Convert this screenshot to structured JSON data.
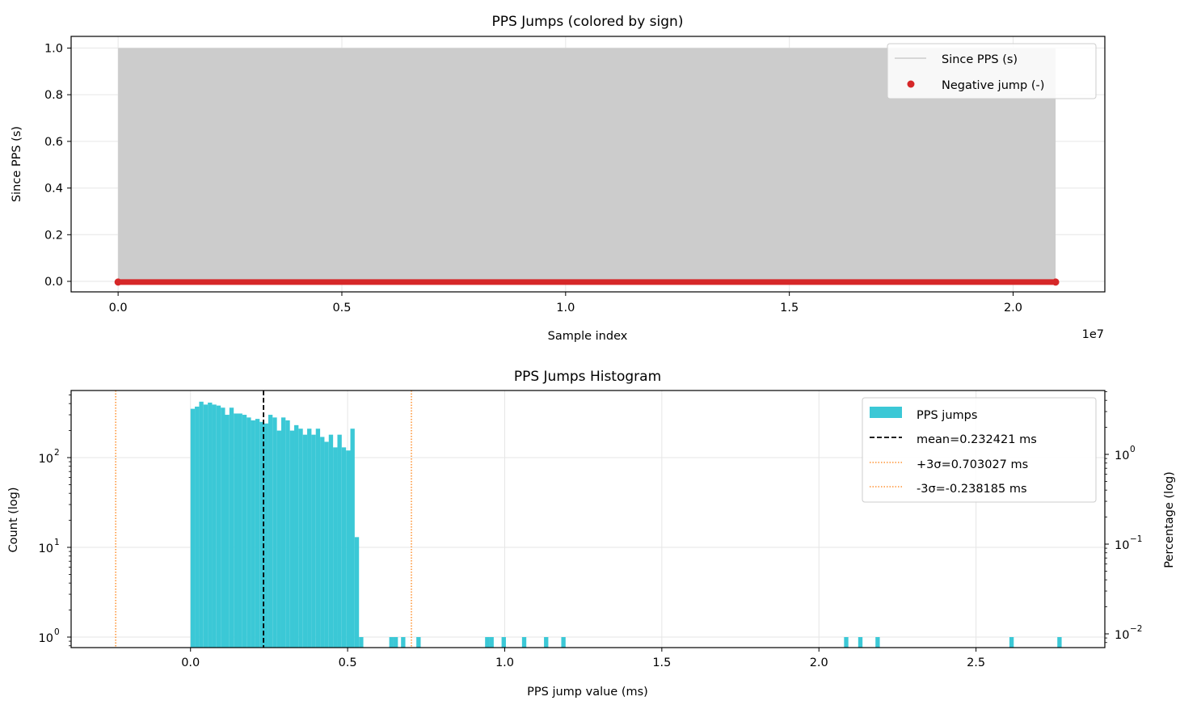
{
  "colors": {
    "since_pps": "#cccccc",
    "negative": "#d62728",
    "histogram": "#3bc8d6",
    "mean_line": "#000000",
    "sigma_line": "#ff7f0e",
    "grid": "#e6e6e6"
  },
  "chart_data": [
    {
      "type": "area",
      "title": "PPS Jumps (colored by sign)",
      "xlabel": "Sample index",
      "ylabel": "Since PPS (s)",
      "x_offset_label": "1e7",
      "xlim": [
        -1.05,
        22.05
      ],
      "ylim": [
        -0.045,
        1.05
      ],
      "x_ticks": [
        0.0,
        0.5,
        1.0,
        1.5,
        2.0
      ],
      "x_tick_labels": [
        "0.0",
        "0.5",
        "1.0",
        "1.5",
        "2.0"
      ],
      "y_ticks": [
        0.0,
        0.2,
        0.4,
        0.6,
        0.8,
        1.0
      ],
      "y_tick_labels": [
        "0.0",
        "0.2",
        "0.4",
        "0.6",
        "0.8",
        "1.0"
      ],
      "grid": true,
      "legend_position": "top-right",
      "series": [
        {
          "name": "Since PPS (s)",
          "kind": "band",
          "x_range": [
            0.0,
            2.095
          ],
          "y_range": [
            0.0,
            1.0
          ]
        },
        {
          "name": "Negative jump (-)",
          "kind": "points",
          "x_range": [
            0.0,
            2.095
          ],
          "y": -0.003
        }
      ]
    },
    {
      "type": "bar",
      "title": "PPS Jumps Histogram",
      "xlabel": "PPS jump value (ms)",
      "ylabel": "Count (log)",
      "y2label": "Percentage (log)",
      "y_scale": "log",
      "xlim": [
        -0.38,
        2.91
      ],
      "x_ticks": [
        0.0,
        0.5,
        1.0,
        1.5,
        2.0,
        2.5
      ],
      "x_tick_labels": [
        "0.0",
        "0.5",
        "1.0",
        "1.5",
        "2.0",
        "2.5"
      ],
      "y_ticks": [
        1,
        10,
        100
      ],
      "y_tick_labels": [
        {
          "base": "10",
          "exp": "0"
        },
        {
          "base": "10",
          "exp": "1"
        },
        {
          "base": "10",
          "exp": "2"
        }
      ],
      "y2_ticks": [
        {
          "base": "10",
          "exp": "−2"
        },
        {
          "base": "10",
          "exp": "−1"
        },
        {
          "base": "10",
          "exp": "0"
        }
      ],
      "grid": true,
      "legend_position": "top-right",
      "bin_width": 0.01375,
      "bins": [
        {
          "x": 0.0,
          "count": 350
        },
        {
          "x": 0.01375,
          "count": 370
        },
        {
          "x": 0.0275,
          "count": 420
        },
        {
          "x": 0.04125,
          "count": 390
        },
        {
          "x": 0.055,
          "count": 410
        },
        {
          "x": 0.06875,
          "count": 390
        },
        {
          "x": 0.0825,
          "count": 380
        },
        {
          "x": 0.09625,
          "count": 360
        },
        {
          "x": 0.11,
          "count": 300
        },
        {
          "x": 0.12375,
          "count": 360
        },
        {
          "x": 0.1375,
          "count": 310
        },
        {
          "x": 0.15125,
          "count": 310
        },
        {
          "x": 0.165,
          "count": 300
        },
        {
          "x": 0.17875,
          "count": 280
        },
        {
          "x": 0.1925,
          "count": 260
        },
        {
          "x": 0.20625,
          "count": 270
        },
        {
          "x": 0.22,
          "count": 250
        },
        {
          "x": 0.23375,
          "count": 240
        },
        {
          "x": 0.2475,
          "count": 300
        },
        {
          "x": 0.26125,
          "count": 280
        },
        {
          "x": 0.275,
          "count": 200
        },
        {
          "x": 0.28875,
          "count": 280
        },
        {
          "x": 0.3025,
          "count": 260
        },
        {
          "x": 0.31625,
          "count": 200
        },
        {
          "x": 0.33,
          "count": 230
        },
        {
          "x": 0.34375,
          "count": 210
        },
        {
          "x": 0.3575,
          "count": 180
        },
        {
          "x": 0.37125,
          "count": 210
        },
        {
          "x": 0.385,
          "count": 180
        },
        {
          "x": 0.39875,
          "count": 210
        },
        {
          "x": 0.4125,
          "count": 170
        },
        {
          "x": 0.42625,
          "count": 150
        },
        {
          "x": 0.44,
          "count": 180
        },
        {
          "x": 0.45375,
          "count": 130
        },
        {
          "x": 0.4675,
          "count": 180
        },
        {
          "x": 0.48125,
          "count": 130
        },
        {
          "x": 0.495,
          "count": 120
        },
        {
          "x": 0.50875,
          "count": 210
        },
        {
          "x": 0.5225,
          "count": 13
        },
        {
          "x": 0.5363,
          "count": 1
        },
        {
          "x": 0.6325,
          "count": 1
        },
        {
          "x": 0.6463,
          "count": 1
        },
        {
          "x": 0.67,
          "count": 1
        },
        {
          "x": 0.7188,
          "count": 1
        },
        {
          "x": 0.9375,
          "count": 1
        },
        {
          "x": 0.9513,
          "count": 1
        },
        {
          "x": 0.99,
          "count": 1
        },
        {
          "x": 1.055,
          "count": 1
        },
        {
          "x": 1.125,
          "count": 1
        },
        {
          "x": 1.18,
          "count": 1
        },
        {
          "x": 2.08,
          "count": 1
        },
        {
          "x": 2.125,
          "count": 1
        },
        {
          "x": 2.18,
          "count": 1
        },
        {
          "x": 2.6063,
          "count": 1
        },
        {
          "x": 2.7588,
          "count": 1
        }
      ],
      "vlines": [
        {
          "name": "mean=0.232421 ms",
          "x": 0.232421,
          "style": "dashed"
        },
        {
          "name": "+3σ=0.703027 ms",
          "x": 0.703027,
          "style": "dotted"
        },
        {
          "name": "-3σ=-0.238185 ms",
          "x": -0.238185,
          "style": "dotted"
        }
      ],
      "hist_series_name": "PPS jumps"
    }
  ]
}
